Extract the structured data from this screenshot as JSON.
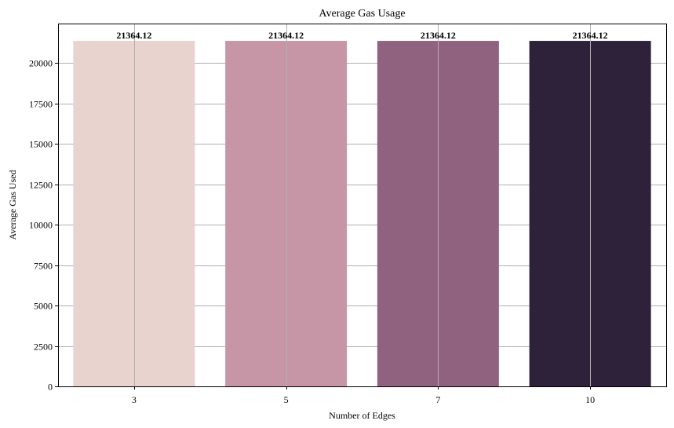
{
  "chart_data": {
    "type": "bar",
    "title": "Average Gas Usage",
    "xlabel": "Number of Edges",
    "ylabel": "Average Gas Used",
    "categories": [
      "3",
      "5",
      "7",
      "10"
    ],
    "values": [
      21364.12,
      21364.12,
      21364.12,
      21364.12
    ],
    "data_labels": [
      "21364.12",
      "21364.12",
      "21364.12",
      "21364.12"
    ],
    "colors": [
      "#e8d3cf",
      "#c796a6",
      "#91627f",
      "#2e213a"
    ],
    "ylim": [
      0,
      22435
    ],
    "yticks": [
      0,
      2500,
      5000,
      7500,
      10000,
      12500,
      15000,
      17500,
      20000
    ],
    "grid": true,
    "legend": "none"
  }
}
